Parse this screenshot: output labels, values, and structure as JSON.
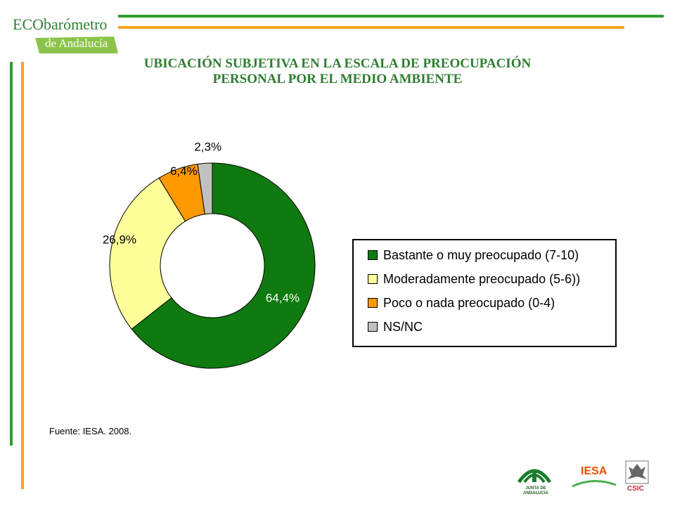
{
  "header": {
    "logo_line1_prefix": "ECO",
    "logo_line1_suffix": "barómetro",
    "logo_line2": "de Andalucía"
  },
  "title_line1": "UBICACIÓN SUBJETIVA EN LA ESCALA DE PREOCUPACIÓN",
  "title_line2": "PERSONAL POR EL MEDIO AMBIENTE",
  "source": "Fuente: IESA. 2008.",
  "footer": {
    "junta_text": "JUNTA DE ANDALUCIA",
    "iesa_text": "IESA",
    "csic_text": "CSIC"
  },
  "colors": {
    "green": "#0f7a0f",
    "yellow": "#ffff99",
    "orange": "#ff9900",
    "gray": "#c0c0c0",
    "accent_green": "#2e7d32",
    "accent_orange": "#f5a623"
  },
  "chart_data": {
    "type": "pie",
    "variant": "donut",
    "title": "UBICACIÓN SUBJETIVA EN LA ESCALA DE PREOCUPACIÓN PERSONAL POR EL MEDIO AMBIENTE",
    "categories": [
      "Bastante o muy preocupado (7-10)",
      "Moderadamente preocupado (5-6))",
      "Poco o nada preocupado (0-4)",
      "NS/NC"
    ],
    "values": [
      64.4,
      26.9,
      6.4,
      2.3
    ],
    "labels": [
      "64,4%",
      "26,9%",
      "6,4%",
      "2,3%"
    ],
    "legend_position": "right"
  }
}
